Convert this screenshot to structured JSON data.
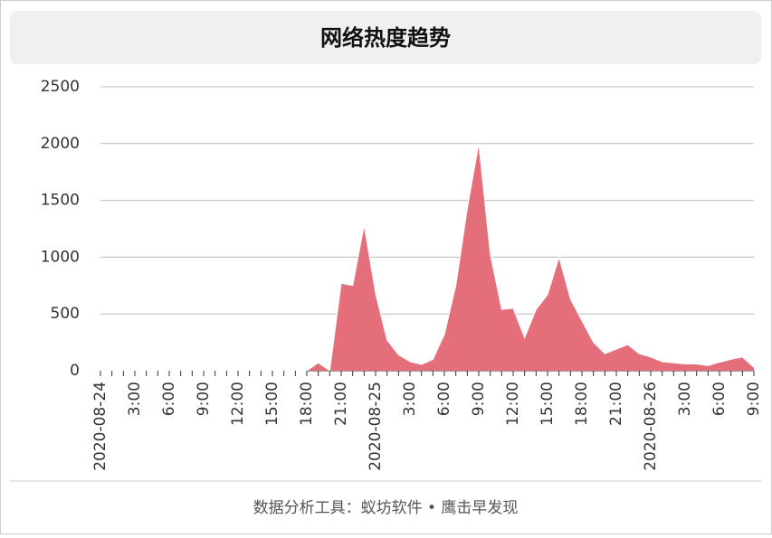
{
  "chart_data": {
    "type": "area",
    "title": "网络热度趋势",
    "footer": "数据分析工具：蚁坊软件 • 鹰击早发现",
    "categories": [
      "2020-08-24",
      null,
      null,
      "3:00",
      null,
      null,
      "6:00",
      null,
      null,
      "9:00",
      null,
      null,
      "12:00",
      null,
      null,
      "15:00",
      null,
      null,
      "18:00",
      null,
      null,
      "21:00",
      null,
      null,
      "2020-08-25",
      null,
      null,
      "3:00",
      null,
      null,
      "6:00",
      null,
      null,
      "9:00",
      null,
      null,
      "12:00",
      null,
      null,
      "15:00",
      null,
      null,
      "18:00",
      null,
      null,
      "21:00",
      null,
      null,
      "2020-08-26",
      null,
      null,
      "3:00",
      null,
      null,
      "6:00",
      null,
      null,
      "9:00"
    ],
    "values": [
      0,
      0,
      0,
      0,
      0,
      0,
      0,
      0,
      0,
      0,
      0,
      0,
      0,
      0,
      0,
      0,
      0,
      0,
      0,
      70,
      0,
      770,
      750,
      1280,
      680,
      270,
      140,
      80,
      55,
      100,
      320,
      750,
      1430,
      2000,
      1030,
      540,
      550,
      290,
      540,
      670,
      1000,
      630,
      440,
      250,
      150,
      190,
      230,
      150,
      120,
      80,
      70,
      60,
      60,
      45,
      75,
      100,
      120,
      30
    ],
    "color": "#e46f7a",
    "ylim": [
      0,
      2500
    ],
    "yticks": [
      0,
      500,
      1000,
      1500,
      2000,
      2500
    ],
    "grid": true
  }
}
